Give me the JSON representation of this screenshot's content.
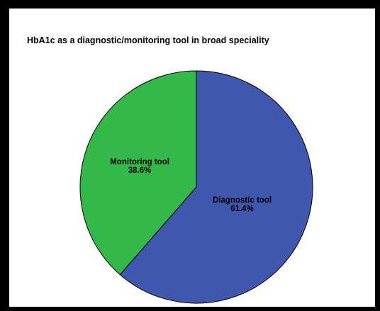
{
  "chart_data": {
    "type": "pie",
    "title": "HbA1c as a diagnostic/monitoring tool in broad speciality",
    "slices": [
      {
        "label": "Diagnostic tool",
        "value": 61.4,
        "value_label": "61.4%",
        "color": "#3f57ad"
      },
      {
        "label": "Monitoring tool",
        "value": 38.6,
        "value_label": "38.6%",
        "color": "#33b84a"
      }
    ],
    "start": "top (12 o'clock)",
    "direction": "clockwise",
    "outline_color": "#000000",
    "legend": "none"
  }
}
